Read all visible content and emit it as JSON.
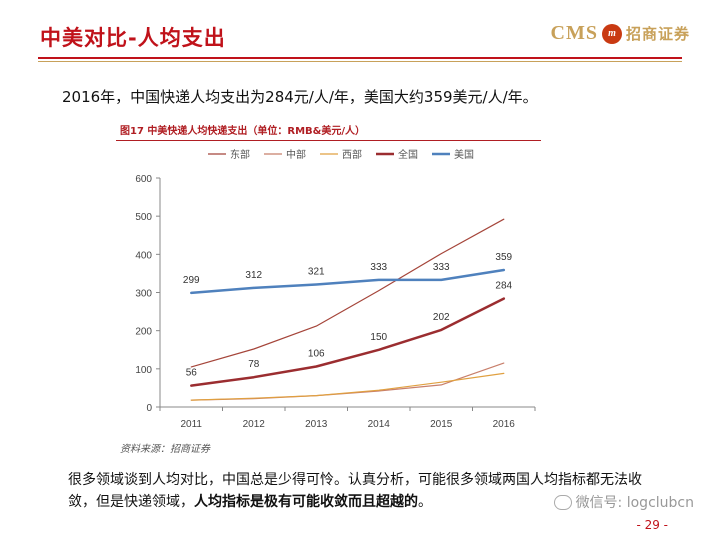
{
  "header": {
    "title": "中美对比-人均支出",
    "logo_text": "CMS",
    "logo_badge": "m",
    "logo_name": "招商证券"
  },
  "headline": "2016年，中国快递人均支出为284元/人/年，美国大约359美元/人/年。",
  "figure": {
    "caption": "图17  中美快递人均快递支出（单位：RMB&美元/人）",
    "source": "资料来源：招商证券"
  },
  "chart_data": {
    "type": "line",
    "title": "",
    "xlabel": "",
    "ylabel": "",
    "categories": [
      "2011",
      "2012",
      "2013",
      "2014",
      "2015",
      "2016"
    ],
    "ylim": [
      0,
      600
    ],
    "yticks": [
      "0",
      "100",
      "200",
      "300",
      "400",
      "500",
      "600"
    ],
    "grid": false,
    "legend_position": "top",
    "series": [
      {
        "name": "东部",
        "values": [
          105,
          152,
          212,
          305,
          402,
          492
        ],
        "color": "#a5453a",
        "width": 1.2,
        "labels": null
      },
      {
        "name": "中部",
        "values": [
          18,
          22,
          30,
          42,
          58,
          115
        ],
        "color": "#c87f6b",
        "width": 1.2,
        "labels": null
      },
      {
        "name": "西部",
        "values": [
          18,
          23,
          30,
          44,
          65,
          88
        ],
        "color": "#e0a040",
        "width": 1.2,
        "labels": null
      },
      {
        "name": "全国",
        "values": [
          56,
          78,
          106,
          150,
          202,
          284
        ],
        "color": "#9b2d30",
        "width": 2.5,
        "labels": [
          "56",
          "78",
          "106",
          "150",
          "202",
          "284"
        ]
      },
      {
        "name": "美国",
        "values": [
          299,
          312,
          321,
          333,
          333,
          359
        ],
        "color": "#4f81bd",
        "width": 2.5,
        "labels": [
          "299",
          "312",
          "321",
          "333",
          "333",
          "359"
        ]
      }
    ]
  },
  "body": {
    "text_part1": "很多领域谈到人均对比，中国总是少得可怜。认真分析，可能很多领域两国人均指标都无法收敛，但是快递领域，",
    "text_bold": "人均指标是极有可能收敛而且超越的",
    "text_part2": "。"
  },
  "watermark": "微信号: logclubcn",
  "page_number": "- 29 -"
}
